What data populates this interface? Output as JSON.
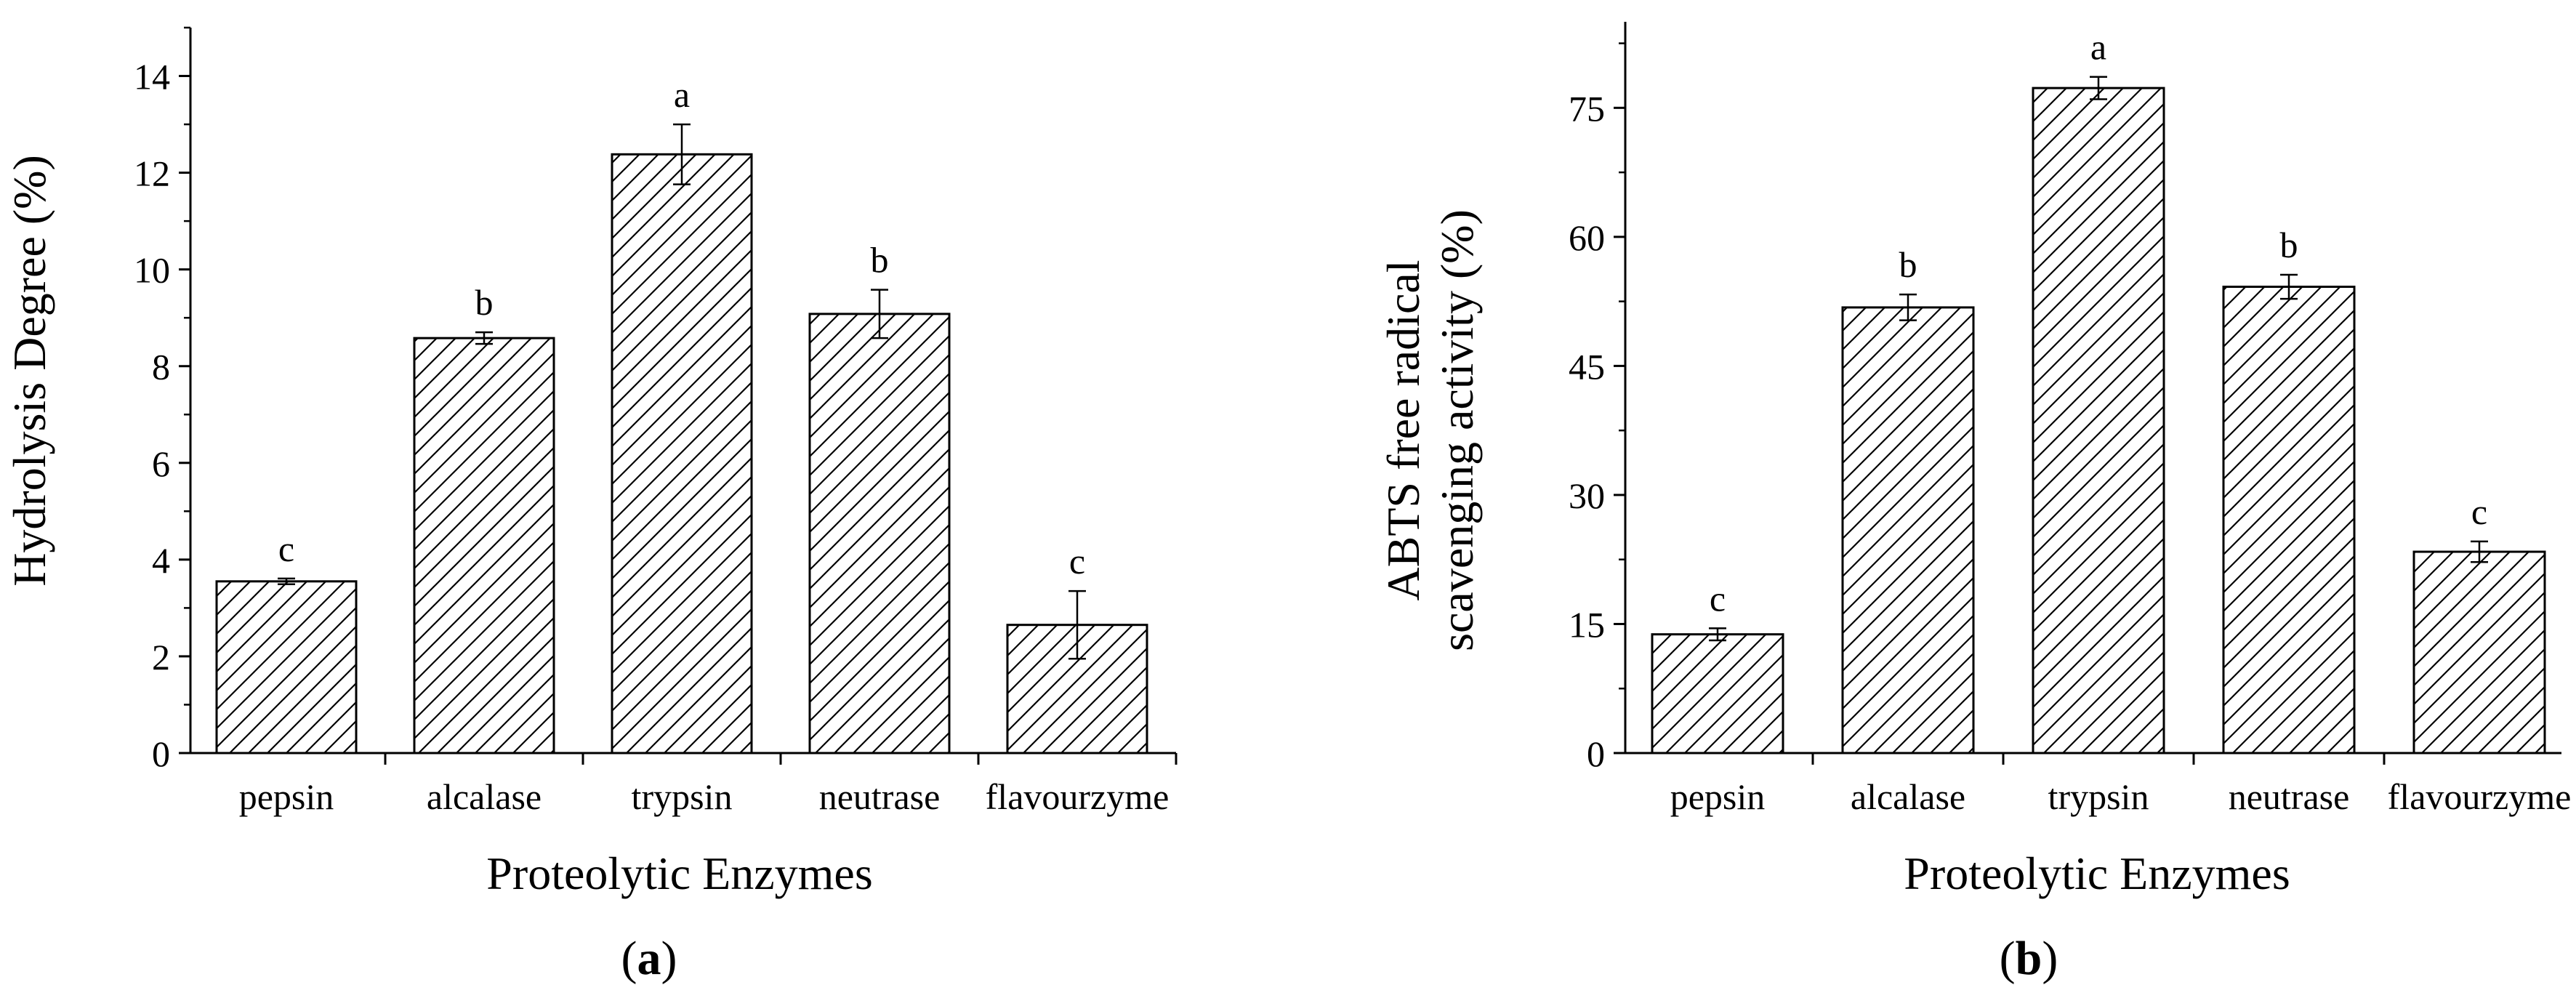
{
  "chart_data": [
    {
      "type": "bar",
      "categories": [
        "pepsin",
        "alcalase",
        "trypsin",
        "neutrase",
        "flavourzyme"
      ],
      "values": [
        3.55,
        8.58,
        12.38,
        9.08,
        2.65
      ],
      "errors": [
        0.06,
        0.12,
        0.62,
        0.5,
        0.7
      ],
      "significance_letters": [
        "c",
        "b",
        "a",
        "b",
        "c"
      ],
      "xlabel": "Proteolytic Enzymes",
      "ylabel": "Hydrolysis Degree (%)",
      "ylim": [
        0,
        15
      ],
      "yticks": [
        0,
        2,
        4,
        6,
        8,
        10,
        12,
        14
      ],
      "yticklabels": [
        "0",
        "2",
        "4",
        "6",
        "8",
        "10",
        "12",
        "14"
      ],
      "panel_prefix": "(",
      "panel_label": "a",
      "panel_suffix": ")",
      "bar_fill": "diagonal-hatch",
      "grid": false
    },
    {
      "type": "bar",
      "categories": [
        "pepsin",
        "alcalase",
        "trypsin",
        "neutrase",
        "flavourzyme"
      ],
      "values": [
        13.8,
        51.8,
        77.3,
        54.2,
        23.4
      ],
      "errors": [
        0.7,
        1.5,
        1.3,
        1.4,
        1.2
      ],
      "significance_letters": [
        "c",
        "b",
        "a",
        "b",
        "c"
      ],
      "xlabel": "Proteolytic Enzymes",
      "ylabel_line1": "ABTS free radical",
      "ylabel_line2": "scavenging activity (%)",
      "ylim": [
        0,
        85
      ],
      "yticks": [
        0,
        15,
        30,
        45,
        60,
        75
      ],
      "yticklabels": [
        "0",
        "15",
        "30",
        "45",
        "60",
        "75"
      ],
      "panel_prefix": "(",
      "panel_label": "b",
      "panel_suffix": ")",
      "bar_fill": "diagonal-hatch",
      "grid": false
    }
  ],
  "colors": {
    "axis": "#000000",
    "bar_outline": "#000000",
    "hatch": "#000000",
    "background": "#ffffff"
  }
}
